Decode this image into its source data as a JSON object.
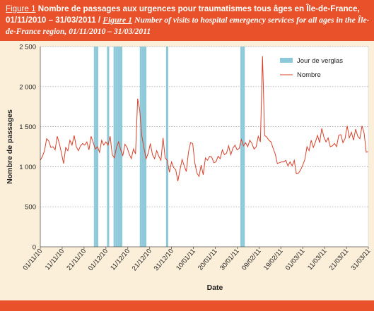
{
  "header": {
    "fig_label": "Figure 1",
    "title_fr": "Nombre de passages aux urgences pour traumatismes tous âges en Île-de-France, 01/11/2010 – 31/03/2011 /",
    "fig_label_en": "Figure 1",
    "title_en": "Number of visits to hospital emergency services for all ages in the Île-de-France region, 01/11/2010 – 31/03/2011"
  },
  "colors": {
    "header_bg": "#e8512a",
    "plot_bg": "#ffffff",
    "frame_bg": "#fcefd9",
    "line": "#d9412a",
    "verglas_bar": "#8ec9d9"
  },
  "chart_data": {
    "type": "line",
    "xlabel": "Date",
    "ylabel": "Nombre de passages",
    "ylim": [
      0,
      2500
    ],
    "yticks": [
      0,
      500,
      1000,
      1500,
      2000,
      2500
    ],
    "ytick_labels": [
      "0",
      "500",
      "1 000",
      "1 500",
      "2 000",
      "2 500"
    ],
    "grid": "horizontal dotted",
    "legend_position": "top-right",
    "x_start": "2010-11-01",
    "x_end": "2011-03-31",
    "xtick_labels": [
      "01/11/10",
      "11/11/10",
      "21/11/10",
      "01/12/10",
      "11/12/10",
      "21/12/10",
      "31/12/10",
      "10/01/11",
      "20/01/11",
      "30/01/11",
      "09/02/11",
      "19/02/11",
      "01/03/11",
      "11/03/11",
      "21/03/11",
      "31/03/11"
    ],
    "series": [
      {
        "name": "Nombre",
        "kind": "line",
        "values": [
          1080,
          1130,
          1200,
          1350,
          1320,
          1240,
          1250,
          1210,
          1380,
          1290,
          1170,
          1040,
          1240,
          1200,
          1330,
          1270,
          1390,
          1250,
          1200,
          1260,
          1290,
          1270,
          1310,
          1210,
          1380,
          1300,
          1220,
          1250,
          1180,
          1330,
          1270,
          1310,
          1270,
          1380,
          1150,
          1110,
          1240,
          1310,
          1210,
          1140,
          1280,
          1240,
          1160,
          1100,
          1220,
          1160,
          1850,
          1700,
          1380,
          1230,
          1100,
          1170,
          1290,
          1150,
          1100,
          1200,
          1130,
          1080,
          1360,
          1110,
          1080,
          930,
          1060,
          990,
          960,
          820,
          960,
          1090,
          1010,
          940,
          1180,
          1300,
          1290,
          1050,
          920,
          880,
          1020,
          900,
          1110,
          1080,
          1130,
          1120,
          1050,
          1060,
          1130,
          1100,
          1210,
          1150,
          1170,
          1260,
          1150,
          1230,
          1270,
          1210,
          1230,
          1340,
          1260,
          1300,
          1250,
          1330,
          1290,
          1220,
          1250,
          1380,
          1310,
          2380,
          1390,
          1370,
          1330,
          1310,
          1230,
          1160,
          1040,
          1050,
          1060,
          1060,
          1080,
          1010,
          1060,
          1010,
          1080,
          910,
          920,
          960,
          1020,
          1090,
          1250,
          1200,
          1330,
          1240,
          1310,
          1390,
          1300,
          1480,
          1370,
          1310,
          1360,
          1250,
          1260,
          1290,
          1250,
          1390,
          1400,
          1300,
          1350,
          1510,
          1360,
          1430,
          1330,
          1470,
          1380,
          1350,
          1510,
          1420,
          1180,
          1190
        ]
      }
    ],
    "verglas_series": {
      "name": "Jour de verglas",
      "kind": "bar",
      "days": [
        "2010-11-26",
        "2010-11-27",
        "2010-12-02",
        "2010-12-05",
        "2010-12-06",
        "2010-12-07",
        "2010-12-08",
        "2010-12-17",
        "2010-12-18",
        "2010-12-19",
        "2010-12-29",
        "2011-02-01",
        "2011-02-02"
      ]
    }
  }
}
